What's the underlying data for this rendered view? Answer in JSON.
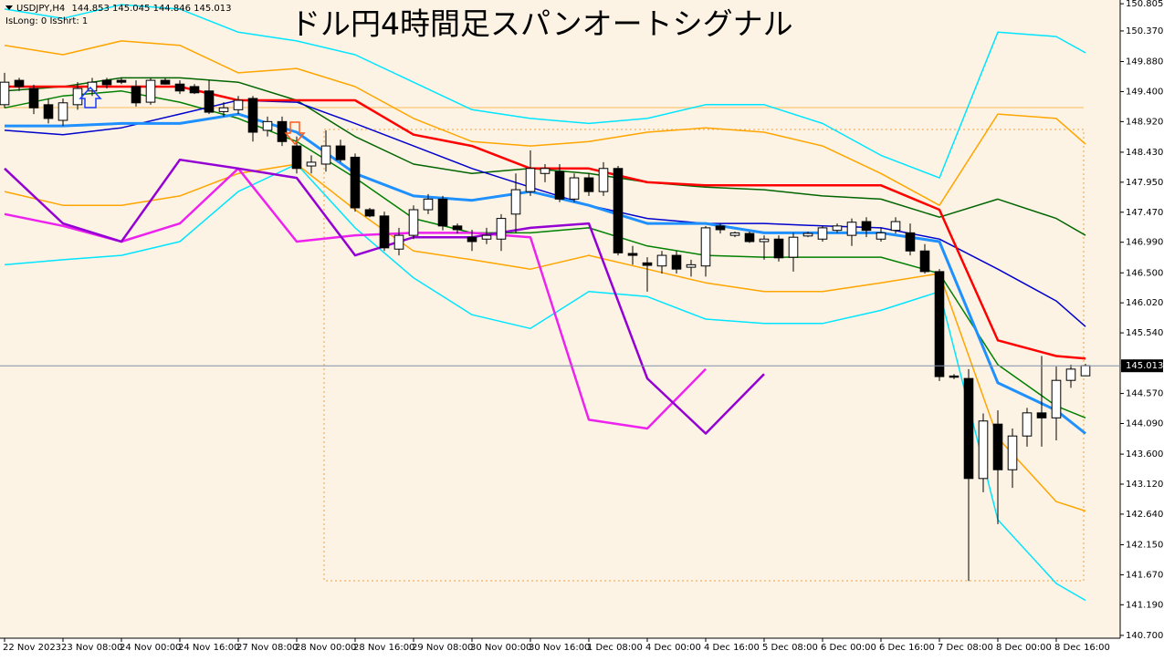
{
  "chart_data": {
    "type": "candlestick",
    "title": "ドル円4時間足スパンオートシグナル",
    "header": {
      "symbol": "USDJPY,H4",
      "open": 144.853,
      "high": 145.045,
      "low": 144.846,
      "close": 145.013
    },
    "status": "IsLong: 0 IsShrt: 1",
    "xlim": [
      -0.3125,
      76.375
    ],
    "ylim": [
      140.655,
      150.865
    ],
    "xticks": [
      {
        "value": 0,
        "label": "22 Nov 2023"
      },
      {
        "value": 4,
        "label": "23 Nov 08:00"
      },
      {
        "value": 8,
        "label": "24 Nov 00:00"
      },
      {
        "value": 12,
        "label": "24 Nov 16:00"
      },
      {
        "value": 16,
        "label": "27 Nov 08:00"
      },
      {
        "value": 20,
        "label": "28 Nov 00:00"
      },
      {
        "value": 24,
        "label": "28 Nov 16:00"
      },
      {
        "value": 28,
        "label": "29 Nov 08:00"
      },
      {
        "value": 32,
        "label": "30 Nov 00:00"
      },
      {
        "value": 36,
        "label": "30 Nov 16:00"
      },
      {
        "value": 40,
        "label": "1 Dec 08:00"
      },
      {
        "value": 44,
        "label": "4 Dec 00:00"
      },
      {
        "value": 48,
        "label": "4 Dec 16:00"
      },
      {
        "value": 52,
        "label": "5 Dec 08:00"
      },
      {
        "value": 56,
        "label": "6 Dec 00:00"
      },
      {
        "value": 60,
        "label": "6 Dec 16:00"
      },
      {
        "value": 64,
        "label": "7 Dec 08:00"
      },
      {
        "value": 68,
        "label": "8 Dec 00:00"
      },
      {
        "value": 72,
        "label": "8 Dec 16:00"
      }
    ],
    "yticks": [
      150.805,
      {
        "value": 150.37,
        "label": "150.370"
      },
      {
        "value": 149.88,
        "label": "149.880"
      },
      {
        "value": 149.4,
        "label": "149.400"
      },
      {
        "value": 148.92,
        "label": "148.920"
      },
      {
        "value": 148.43,
        "label": "148.430"
      },
      {
        "value": 147.95,
        "label": "147.950"
      },
      {
        "value": 147.47,
        "label": "147.470"
      },
      {
        "value": 146.99,
        "label": "146.990"
      },
      {
        "value": 146.5,
        "label": "146.500"
      },
      {
        "value": 146.02,
        "label": "146.020"
      },
      {
        "value": 145.54,
        "label": "145.540"
      },
      {
        "value": 144.57,
        "label": "144.570"
      },
      {
        "value": 144.09,
        "label": "144.090"
      },
      {
        "value": 143.6,
        "label": "143.600"
      },
      {
        "value": 143.12,
        "label": "143.120"
      },
      {
        "value": 142.64,
        "label": "142.640"
      },
      {
        "value": 142.15,
        "label": "142.150"
      },
      {
        "value": 141.67,
        "label": "141.670"
      },
      {
        "value": 141.19,
        "label": "141.190"
      },
      {
        "value": 140.7,
        "label": "140.700"
      }
    ],
    "bull_color": "#ffffff",
    "bear_color": "#000000",
    "open": [
      149.19,
      149.58,
      149.45,
      149.19,
      148.94,
      149.19,
      149.41,
      149.58,
      149.58,
      149.48,
      149.23,
      149.58,
      149.52,
      149.48,
      149.41,
      149.08,
      149.11,
      149.29,
      148.78,
      148.92,
      148.53,
      148.21,
      148.24,
      148.53,
      148.35,
      147.51,
      147.41,
      146.88,
      147.1,
      147.51,
      147.68,
      147.25,
      147.07,
      147.04,
      147.04,
      147.44,
      147.8,
      148.09,
      148.12,
      147.68,
      148.02,
      147.8,
      148.17,
      146.81,
      146.66,
      146.61,
      146.78,
      146.59,
      146.61,
      147.25,
      147.1,
      147.13,
      147.0,
      147.04,
      146.75,
      147.09,
      147.04,
      147.18,
      147.1,
      147.32,
      147.04,
      147.18,
      147.14,
      146.85,
      146.52,
      144.85,
      144.81,
      143.21,
      144.08,
      143.35,
      143.89,
      144.26,
      144.18,
      144.78,
      144.853
    ],
    "high": [
      149.7,
      149.62,
      149.51,
      149.29,
      149.29,
      149.55,
      149.62,
      149.62,
      149.62,
      149.58,
      149.62,
      149.62,
      149.58,
      149.52,
      149.58,
      149.23,
      149.33,
      149.33,
      149.0,
      149.0,
      148.68,
      148.38,
      148.78,
      148.63,
      148.41,
      147.54,
      147.48,
      147.22,
      147.58,
      147.76,
      147.73,
      147.29,
      147.19,
      147.22,
      147.44,
      148.09,
      148.46,
      148.24,
      148.24,
      148.09,
      148.09,
      148.27,
      148.21,
      146.93,
      146.75,
      146.85,
      146.85,
      146.71,
      147.25,
      147.29,
      147.16,
      147.16,
      147.1,
      147.1,
      147.14,
      147.16,
      147.25,
      147.29,
      147.37,
      147.39,
      147.22,
      147.39,
      147.29,
      146.96,
      146.56,
      144.88,
      144.96,
      144.25,
      144.3,
      144.01,
      144.34,
      145.17,
      145.0,
      145.03,
      145.045
    ],
    "low": [
      149.14,
      149.41,
      149.04,
      148.89,
      148.85,
      149.11,
      149.33,
      149.45,
      149.52,
      149.16,
      149.19,
      149.51,
      149.36,
      149.36,
      149.04,
      149.0,
      149.04,
      148.6,
      148.68,
      148.53,
      148.09,
      148.09,
      148.12,
      148.27,
      147.48,
      147.39,
      146.85,
      146.78,
      147.04,
      147.44,
      147.18,
      147.13,
      146.85,
      146.96,
      146.85,
      147.14,
      147.73,
      147.95,
      147.63,
      147.63,
      147.73,
      147.73,
      146.78,
      146.63,
      146.2,
      146.49,
      146.49,
      146.44,
      146.44,
      147.13,
      147.07,
      146.98,
      146.71,
      146.68,
      146.52,
      147.07,
      147.0,
      147.14,
      146.93,
      147.07,
      147.0,
      147.13,
      146.78,
      146.49,
      144.77,
      144.8,
      141.57,
      142.99,
      142.48,
      143.06,
      143.72,
      143.72,
      143.82,
      144.66,
      144.846
    ],
    "close": [
      149.55,
      149.48,
      149.14,
      148.97,
      149.22,
      149.45,
      149.55,
      149.51,
      149.55,
      149.22,
      149.58,
      149.52,
      149.41,
      149.38,
      149.07,
      149.14,
      149.26,
      148.75,
      148.92,
      148.6,
      148.17,
      148.27,
      148.53,
      148.31,
      147.54,
      147.41,
      146.9,
      147.1,
      147.51,
      147.68,
      147.25,
      147.19,
      147.0,
      147.1,
      147.37,
      147.83,
      148.17,
      148.17,
      147.68,
      148.02,
      147.8,
      148.17,
      146.82,
      146.78,
      146.62,
      146.78,
      146.56,
      146.63,
      147.22,
      147.19,
      147.14,
      147.0,
      147.04,
      146.74,
      147.07,
      147.13,
      147.22,
      147.25,
      147.31,
      147.18,
      147.14,
      147.32,
      146.85,
      146.52,
      144.84,
      144.83,
      143.21,
      144.13,
      143.35,
      143.89,
      144.26,
      144.18,
      144.78,
      144.96,
      145.013
    ],
    "line_x": [
      0,
      4,
      8,
      12,
      16,
      20,
      24,
      28,
      32,
      36,
      40,
      44,
      48,
      52,
      56,
      60,
      64,
      68,
      72,
      74
    ],
    "indicators": [
      {
        "color": "#00e5ff",
        "values": [
          150.72,
          150.57,
          150.79,
          150.72,
          150.35,
          150.21,
          149.99,
          149.55,
          149.11,
          148.97,
          148.89,
          148.97,
          149.19,
          149.19,
          148.89,
          148.38,
          148.02,
          150.35,
          150.28,
          150.02
        ]
      },
      {
        "color": "#00e5ff",
        "values": [
          146.63,
          146.71,
          146.78,
          147.0,
          147.8,
          148.24,
          147.22,
          146.42,
          145.83,
          145.61,
          146.2,
          146.12,
          145.76,
          145.69,
          145.69,
          145.9,
          146.2,
          142.55,
          141.53,
          141.26
        ]
      },
      {
        "color": "#ffa500",
        "values": [
          150.14,
          149.99,
          150.21,
          150.14,
          149.7,
          149.77,
          149.48,
          148.97,
          148.6,
          148.53,
          148.6,
          148.75,
          148.82,
          148.75,
          148.53,
          148.09,
          147.58,
          149.04,
          148.97,
          148.56
        ]
      },
      {
        "color": "#ffa500",
        "values": [
          147.8,
          147.58,
          147.58,
          147.73,
          148.09,
          148.24,
          147.51,
          146.85,
          146.71,
          146.56,
          146.78,
          146.56,
          146.34,
          146.2,
          146.2,
          146.34,
          146.49,
          143.86,
          142.84,
          142.69
        ]
      },
      {
        "color": "#006400",
        "values": [
          149.41,
          149.48,
          149.62,
          149.62,
          149.55,
          149.26,
          148.68,
          148.24,
          148.09,
          148.17,
          148.09,
          147.95,
          147.87,
          147.83,
          147.73,
          147.68,
          147.39,
          147.68,
          147.37,
          147.1
        ]
      },
      {
        "color": "#008000",
        "values": [
          149.14,
          149.33,
          149.41,
          149.23,
          148.97,
          148.6,
          148.02,
          147.37,
          147.14,
          147.14,
          147.22,
          146.93,
          146.78,
          146.75,
          146.75,
          146.75,
          146.49,
          145.03,
          144.37,
          144.18
        ]
      },
      {
        "color": "#0000cd",
        "values": [
          148.78,
          148.71,
          148.82,
          149.04,
          149.26,
          149.23,
          148.89,
          148.53,
          148.17,
          147.87,
          147.58,
          147.37,
          147.29,
          147.29,
          147.25,
          147.22,
          147.04,
          146.56,
          146.05,
          145.64
        ]
      },
      {
        "color": "#1e90ff",
        "values": [
          148.85,
          148.85,
          148.89,
          148.89,
          149.04,
          148.75,
          148.09,
          147.73,
          147.66,
          147.8,
          147.58,
          147.29,
          147.29,
          147.14,
          147.14,
          147.14,
          147.0,
          144.74,
          144.3,
          143.93
        ]
      },
      {
        "color": "#ff0000",
        "values": [
          149.48,
          149.48,
          149.48,
          149.48,
          149.26,
          149.26,
          149.26,
          148.71,
          148.53,
          148.17,
          148.17,
          147.95,
          147.9,
          147.9,
          147.9,
          147.9,
          147.51,
          145.42,
          145.17,
          145.13
        ]
      },
      {
        "color": "#ee22ee",
        "values": [
          147.44,
          147.25,
          147.0,
          147.29,
          148.17,
          147.0,
          147.1,
          147.14,
          147.14,
          147.07,
          144.15,
          144.01,
          144.96,
          null,
          null,
          null,
          null,
          null,
          null,
          null
        ]
      },
      {
        "color": "#9400d3",
        "values": [
          148.17,
          147.29,
          147.0,
          148.31,
          148.17,
          148.02,
          146.78,
          147.07,
          147.07,
          147.22,
          147.29,
          144.81,
          143.93,
          144.88,
          null,
          null,
          null,
          null,
          null,
          null
        ]
      }
    ]
  }
}
